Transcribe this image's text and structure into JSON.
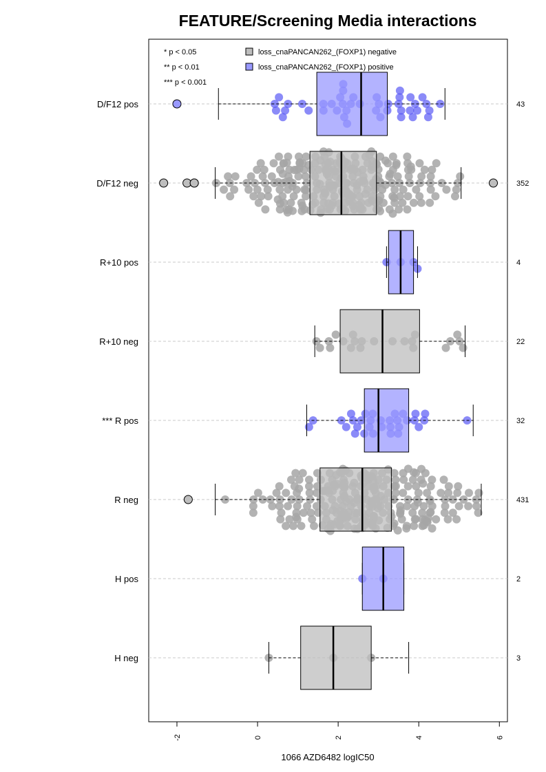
{
  "chart_data": {
    "type": "box",
    "title": "FEATURE/Screening Media interactions",
    "xlabel": "1066 AZD6482 logIC50",
    "xlim": [
      -2.7,
      6.2
    ],
    "x_ticks": [
      -2,
      0,
      2,
      4,
      6
    ],
    "grid": "horizontal dashed lines at each group",
    "legend": {
      "placement": "top",
      "significance": [
        "* p < 0.05",
        "** p < 0.01",
        "*** p < 0.001"
      ],
      "entries": [
        {
          "label": "loss_cnaPANCAN262_(FOXP1) negative",
          "color": "#bebebe"
        },
        {
          "label": "loss_cnaPANCAN262_(FOXP1) positive",
          "color": "#9999ff"
        }
      ]
    },
    "colors": {
      "negative_box": "#bebebe",
      "positive_box": "#9999ff",
      "negative_point": "#a6a6a6",
      "positive_point": "#5a5af5"
    },
    "groups": [
      {
        "label": "D/F12 pos",
        "status": "positive",
        "n": "43",
        "whisker_low": -0.97,
        "q1": 1.47,
        "median": 2.57,
        "q3": 3.22,
        "whisker_high": 4.65,
        "outliers": [
          -2.0
        ]
      },
      {
        "label": "D/F12 neg",
        "status": "negative",
        "n": "352",
        "whisker_low": -1.05,
        "q1": 1.3,
        "median": 2.08,
        "q3": 2.95,
        "whisker_high": 5.05,
        "outliers": [
          -2.33,
          -1.75,
          -1.57,
          -1.57,
          5.85
        ]
      },
      {
        "label": "R+10 pos",
        "status": "positive",
        "n": "4",
        "whisker_low": 3.2,
        "q1": 3.25,
        "median": 3.55,
        "q3": 3.87,
        "whisker_high": 3.97,
        "outliers": []
      },
      {
        "label": "R+10 neg",
        "status": "negative",
        "n": "22",
        "whisker_low": 1.42,
        "q1": 2.05,
        "median": 3.1,
        "q3": 4.02,
        "whisker_high": 5.15,
        "outliers": []
      },
      {
        "label": "*** R pos",
        "status": "positive",
        "n": "32",
        "whisker_low": 1.22,
        "q1": 2.65,
        "median": 3.0,
        "q3": 3.75,
        "whisker_high": 5.35,
        "outliers": []
      },
      {
        "label": "R neg",
        "status": "negative",
        "n": "431",
        "whisker_low": -1.05,
        "q1": 1.55,
        "median": 2.6,
        "q3": 3.32,
        "whisker_high": 5.55,
        "outliers": [
          -1.72
        ]
      },
      {
        "label": "H pos",
        "status": "positive",
        "n": "2",
        "whisker_low": 2.6,
        "q1": 2.6,
        "median": 3.12,
        "q3": 3.63,
        "whisker_high": 3.63,
        "outliers": []
      },
      {
        "label": "H neg",
        "status": "negative",
        "n": "3",
        "whisker_low": 0.28,
        "q1": 1.07,
        "median": 1.88,
        "q3": 2.82,
        "whisker_high": 3.75,
        "outliers": []
      }
    ]
  }
}
